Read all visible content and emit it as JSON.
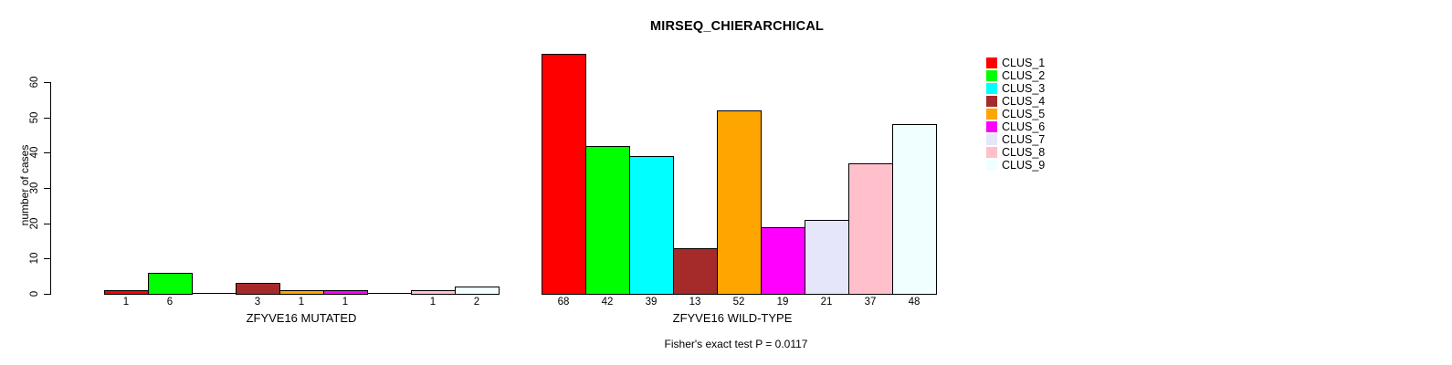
{
  "chart_data": {
    "type": "bar",
    "title": "MIRSEQ_CHIERARCHICAL",
    "ylabel": "number of cases",
    "xlabel": "",
    "ylim": [
      0,
      60
    ],
    "yticks": [
      0,
      10,
      20,
      30,
      40,
      50,
      60
    ],
    "grid": false,
    "legend_position": "top-right",
    "legend": [
      "CLUS_1",
      "CLUS_2",
      "CLUS_3",
      "CLUS_4",
      "CLUS_5",
      "CLUS_6",
      "CLUS_7",
      "CLUS_8",
      "CLUS_9"
    ],
    "colors": [
      "#ff0000",
      "#00ff00",
      "#00ffff",
      "#a52a2a",
      "#ffa500",
      "#ff00ff",
      "#e6e6fa",
      "#ffc0cb",
      "#f0ffff"
    ],
    "groups": [
      {
        "label": "ZFYVE16 MUTATED",
        "values": [
          1,
          6,
          0,
          3,
          1,
          1,
          0,
          1,
          2
        ]
      },
      {
        "label": "ZFYVE16 WILD-TYPE",
        "values": [
          68,
          42,
          39,
          13,
          52,
          19,
          21,
          37,
          48
        ]
      }
    ],
    "annotation": "Fisher's exact test P = 0.0117"
  }
}
